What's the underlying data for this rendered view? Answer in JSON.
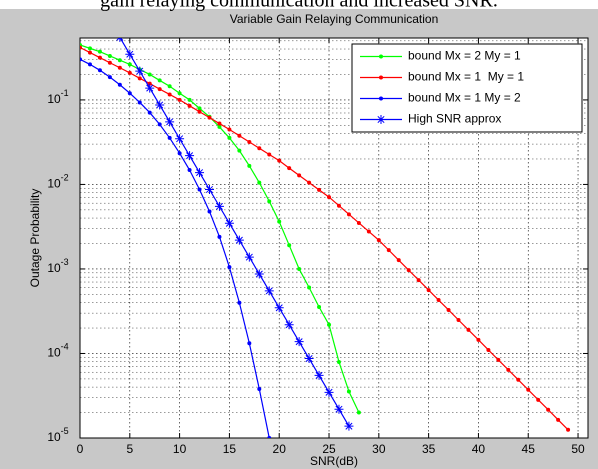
{
  "caption": "gain relaying communication and increased SNR.",
  "chart_data": {
    "type": "line",
    "title": "Variable Gain Relaying Communication",
    "xlabel": "SNR(dB)",
    "ylabel": "Outage Probability",
    "xlim": [
      0,
      51
    ],
    "xticks": [
      0,
      5,
      10,
      15,
      20,
      25,
      30,
      35,
      40,
      45,
      50
    ],
    "ylim": [
      1e-05,
      0.54
    ],
    "yscale": "log",
    "yticks": [
      {
        "value": 1e-05,
        "label": "10-5"
      },
      {
        "value": 0.0001,
        "label": "10-4"
      },
      {
        "value": 0.001,
        "label": "10-3"
      },
      {
        "value": 0.01,
        "label": "10-2"
      },
      {
        "value": 0.1,
        "label": "10-1"
      }
    ],
    "grid": true,
    "minor_grid": true,
    "legend_loc": "northeast",
    "series": [
      {
        "name": "bound Mx = 2 My = 1",
        "color": "#00ff00",
        "marker": "dot",
        "x": [
          0,
          1,
          2,
          3,
          4,
          5,
          6,
          7,
          8,
          9,
          10,
          11,
          12,
          13,
          14,
          15,
          16,
          17,
          18,
          19,
          20,
          21,
          22,
          23,
          24,
          25,
          26,
          27,
          28
        ],
        "values": [
          0.447,
          0.407,
          0.372,
          0.331,
          0.295,
          0.263,
          0.229,
          0.2,
          0.17,
          0.145,
          0.12,
          0.1,
          0.0794,
          0.0631,
          0.0479,
          0.0355,
          0.0251,
          0.0166,
          0.0105,
          0.00631,
          0.00363,
          0.00191,
          0.001,
          0.000603,
          0.000355,
          0.000219,
          7.94e-05,
          3.55e-05,
          2e-05
        ]
      },
      {
        "name": "bound Mx = 1  My = 1",
        "color": "#ff0000",
        "marker": "dot",
        "x": [
          0,
          1,
          2,
          3,
          4,
          5,
          6,
          7,
          8,
          9,
          10,
          11,
          12,
          13,
          14,
          15,
          16,
          17,
          18,
          19,
          20,
          21,
          22,
          23,
          24,
          25,
          26,
          27,
          28,
          29,
          30,
          31,
          32,
          33,
          34,
          35,
          36,
          37,
          38,
          39,
          40,
          41,
          42,
          43,
          44,
          45,
          46,
          47,
          48,
          49
        ],
        "values": [
          0.417,
          0.363,
          0.316,
          0.275,
          0.24,
          0.209,
          0.18,
          0.156,
          0.134,
          0.116,
          0.1,
          0.0851,
          0.0724,
          0.0617,
          0.0525,
          0.0447,
          0.0377,
          0.0318,
          0.0268,
          0.0226,
          0.0191,
          0.0156,
          0.0128,
          0.0105,
          0.00863,
          0.00708,
          0.0056,
          0.00443,
          0.0035,
          0.00277,
          0.00219,
          0.00167,
          0.00127,
          0.000968,
          0.000738,
          0.000562,
          0.000429,
          0.000327,
          0.000249,
          0.00019,
          0.000145,
          0.00011,
          8.39e-05,
          6.4e-05,
          4.88e-05,
          3.72e-05,
          2.83e-05,
          2.16e-05,
          1.64e-05,
          1.25e-05
        ]
      },
      {
        "name": "bound Mx = 1 My = 2",
        "color": "#0000ff",
        "marker": "dot",
        "x": [
          0,
          1,
          2,
          3,
          4,
          5,
          6,
          7,
          8,
          9,
          10,
          11,
          12,
          13,
          14,
          15,
          16,
          17,
          18,
          19
        ],
        "values": [
          0.302,
          0.263,
          0.224,
          0.186,
          0.151,
          0.12,
          0.0933,
          0.0708,
          0.0513,
          0.0355,
          0.0234,
          0.0148,
          0.00871,
          0.00479,
          0.0024,
          0.00105,
          0.000398,
          0.000132,
          3.8e-05,
          1e-05
        ]
      },
      {
        "name": "High SNR approx",
        "color": "#0000ff",
        "marker": "asterisk",
        "x": [
          3,
          4,
          5,
          6,
          7,
          8,
          9,
          10,
          11,
          12,
          13,
          14,
          15,
          16,
          17,
          18,
          19,
          20,
          21,
          22,
          23,
          24,
          25,
          26,
          27
        ],
        "values": [
          0.871,
          0.55,
          0.347,
          0.219,
          0.138,
          0.0871,
          0.055,
          0.0347,
          0.0219,
          0.0138,
          0.00871,
          0.0055,
          0.00347,
          0.00219,
          0.00138,
          0.000871,
          0.00055,
          0.000347,
          0.000219,
          0.000138,
          8.71e-05,
          5.5e-05,
          3.47e-05,
          2.19e-05,
          1.38e-05
        ]
      }
    ]
  }
}
